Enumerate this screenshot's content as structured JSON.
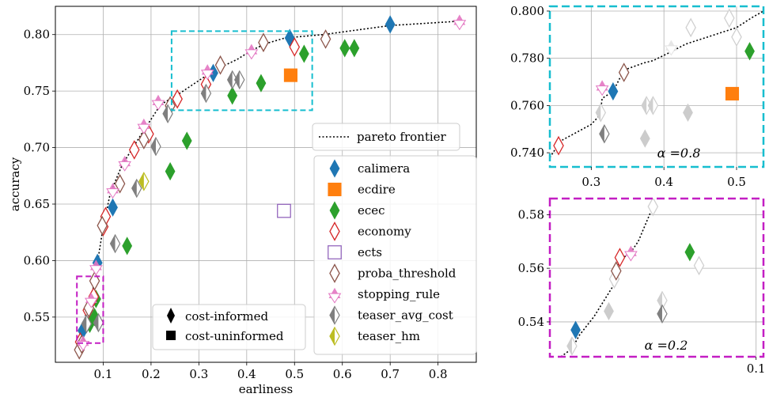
{
  "chart_data": [
    {
      "type": "scatter",
      "panel": "main",
      "xlabel": "earliness",
      "ylabel": "accuracy",
      "xlim": [
        0.0,
        0.88
      ],
      "ylim": [
        0.51,
        0.825
      ],
      "xticks": [
        "0.1",
        "0.2",
        "0.3",
        "0.4",
        "0.5",
        "0.6",
        "0.7",
        "0.8"
      ],
      "xtick_values": [
        0.1,
        0.2,
        0.3,
        0.4,
        0.5,
        0.6,
        0.7,
        0.8
      ],
      "yticks": [
        "0.55",
        "0.60",
        "0.65",
        "0.70",
        "0.75",
        "0.80"
      ],
      "ytick_values": [
        0.55,
        0.6,
        0.65,
        0.7,
        0.75,
        0.8
      ],
      "grid": true,
      "pareto_frontier": [
        [
          0.05,
          0.52
        ],
        [
          0.058,
          0.54
        ],
        [
          0.065,
          0.556
        ],
        [
          0.075,
          0.566
        ],
        [
          0.088,
          0.598
        ],
        [
          0.1,
          0.63
        ],
        [
          0.115,
          0.66
        ],
        [
          0.14,
          0.685
        ],
        [
          0.18,
          0.712
        ],
        [
          0.22,
          0.738
        ],
        [
          0.26,
          0.748
        ],
        [
          0.32,
          0.765
        ],
        [
          0.35,
          0.772
        ],
        [
          0.38,
          0.778
        ],
        [
          0.41,
          0.786
        ],
        [
          0.44,
          0.792
        ],
        [
          0.48,
          0.797
        ],
        [
          0.56,
          0.8
        ],
        [
          0.7,
          0.808
        ],
        [
          0.85,
          0.812
        ]
      ],
      "series": [
        {
          "name": "calimera",
          "color": "#1f77b4",
          "marker": "diamond",
          "filled": true,
          "x": [
            0.057,
            0.067,
            0.088,
            0.12,
            0.33,
            0.49,
            0.7
          ],
          "y": [
            0.538,
            0.545,
            0.598,
            0.647,
            0.766,
            0.797,
            0.809
          ]
        },
        {
          "name": "ecdire",
          "color": "#ff7f0e",
          "marker": "square",
          "filled": true,
          "x": [
            0.492
          ],
          "y": [
            0.764
          ]
        },
        {
          "name": "ecec",
          "color": "#2ca02c",
          "marker": "diamond",
          "filled": true,
          "x": [
            0.072,
            0.082,
            0.085,
            0.15,
            0.24,
            0.275,
            0.37,
            0.43,
            0.52,
            0.605,
            0.625
          ],
          "y": [
            0.544,
            0.55,
            0.566,
            0.613,
            0.679,
            0.706,
            0.746,
            0.757,
            0.783,
            0.788,
            0.788
          ]
        },
        {
          "name": "economy",
          "color": "#d62728",
          "marker": "diamond",
          "filled": false,
          "x": [
            0.052,
            0.068,
            0.08,
            0.1,
            0.105,
            0.165,
            0.195,
            0.255,
            0.315,
            0.5
          ],
          "y": [
            0.528,
            0.556,
            0.568,
            0.63,
            0.639,
            0.698,
            0.712,
            0.743,
            0.756,
            0.789
          ]
        },
        {
          "name": "ects",
          "color": "#9467bd",
          "marker": "square",
          "filled": false,
          "x": [
            0.478
          ],
          "y": [
            0.644
          ]
        },
        {
          "name": "proba_threshold",
          "color": "#8c564b",
          "marker": "diamond",
          "filled": false,
          "x": [
            0.05,
            0.055,
            0.07,
            0.082,
            0.098,
            0.135,
            0.185,
            0.24,
            0.345,
            0.435,
            0.565
          ],
          "y": [
            0.521,
            0.526,
            0.558,
            0.582,
            0.631,
            0.668,
            0.707,
            0.737,
            0.773,
            0.793,
            0.796
          ]
        },
        {
          "name": "stopping_rule",
          "color": "#e377c2",
          "marker": "triangle",
          "filled": true,
          "x": [
            0.058,
            0.075,
            0.085,
            0.12,
            0.145,
            0.185,
            0.215,
            0.318,
            0.41,
            0.845
          ],
          "y": [
            0.528,
            0.566,
            0.595,
            0.663,
            0.687,
            0.72,
            0.741,
            0.768,
            0.786,
            0.812
          ]
        },
        {
          "name": "teaser_avg_cost",
          "color": "#7f7f7f",
          "marker": "diamond",
          "filled": "half",
          "x": [
            0.065,
            0.09,
            0.125,
            0.17,
            0.21,
            0.235,
            0.315,
            0.37,
            0.385
          ],
          "y": [
            0.544,
            0.545,
            0.615,
            0.664,
            0.701,
            0.73,
            0.748,
            0.76,
            0.76
          ]
        },
        {
          "name": "teaser_hm",
          "color": "#bcbd22",
          "marker": "diamond",
          "filled": "half",
          "x": [
            0.185
          ],
          "y": [
            0.67
          ]
        }
      ],
      "legend_position": "right",
      "legend_extra": [
        {
          "label": "cost-informed",
          "marker": "diamond"
        },
        {
          "label": "cost-uninformed",
          "marker": "square"
        }
      ],
      "legend_extra_position": "bottom-center",
      "frontier_legend_label": "pareto frontier",
      "annotation_boxes": [
        {
          "color": "#17becf",
          "x": [
            0.243,
            0.537
          ],
          "y": [
            0.733,
            0.803
          ]
        },
        {
          "color": "#c31ec3",
          "x": [
            0.045,
            0.1
          ],
          "y": [
            0.527,
            0.586
          ]
        }
      ]
    },
    {
      "type": "scatter",
      "panel": "inset-top",
      "label": "α =0.8",
      "border_color": "#17becf",
      "xlim": [
        0.243,
        0.537
      ],
      "ylim": [
        0.734,
        0.802
      ],
      "xticks": [
        "0.3",
        "0.4",
        "0.5"
      ],
      "xtick_values": [
        0.3,
        0.4,
        0.5
      ],
      "yticks": [
        "0.740",
        "0.760",
        "0.780",
        "0.800"
      ],
      "ytick_values": [
        0.74,
        0.76,
        0.78,
        0.8
      ],
      "frontier": [
        [
          0.243,
          0.738
        ],
        [
          0.258,
          0.745
        ],
        [
          0.3,
          0.752
        ],
        [
          0.312,
          0.756
        ],
        [
          0.315,
          0.763
        ],
        [
          0.33,
          0.766
        ],
        [
          0.345,
          0.775
        ],
        [
          0.372,
          0.778
        ],
        [
          0.385,
          0.779
        ],
        [
          0.405,
          0.782
        ],
        [
          0.43,
          0.786
        ],
        [
          0.47,
          0.79
        ],
        [
          0.5,
          0.793
        ],
        [
          0.52,
          0.797
        ],
        [
          0.537,
          0.8
        ]
      ],
      "points": [
        {
          "series": "economy",
          "x": 0.255,
          "y": 0.743,
          "color": "#d62728",
          "marker": "diamond",
          "filled": false
        },
        {
          "series": "teaser_avg_cost",
          "x": 0.318,
          "y": 0.748,
          "color": "#7f7f7f",
          "marker": "diamond",
          "filled": "half"
        },
        {
          "series": "teaser_avg_cost",
          "x": 0.313,
          "y": 0.757,
          "color": "#cfcfcf",
          "marker": "diamond",
          "filled": "half"
        },
        {
          "series": "stopping_rule",
          "x": 0.315,
          "y": 0.768,
          "color": "#e377c2",
          "marker": "triangle",
          "filled": true
        },
        {
          "series": "calimera",
          "x": 0.33,
          "y": 0.766,
          "color": "#1f77b4",
          "marker": "diamond",
          "filled": true
        },
        {
          "series": "proba_threshold",
          "x": 0.345,
          "y": 0.774,
          "color": "#8c564b",
          "marker": "diamond",
          "filled": false
        },
        {
          "series": "ecec",
          "x": 0.374,
          "y": 0.746,
          "color": "#cccccc",
          "marker": "diamond",
          "filled": true
        },
        {
          "series": "teaser_avg_cost",
          "x": 0.376,
          "y": 0.76,
          "color": "#cfcfcf",
          "marker": "diamond",
          "filled": "half"
        },
        {
          "series": "teaser_avg_cost",
          "x": 0.385,
          "y": 0.76,
          "color": "#cfcfcf",
          "marker": "diamond",
          "filled": "half"
        },
        {
          "series": "ecec",
          "x": 0.433,
          "y": 0.757,
          "color": "#cccccc",
          "marker": "diamond",
          "filled": true
        },
        {
          "series": "stopping_rule",
          "x": 0.41,
          "y": 0.785,
          "color": "#e3e3e3",
          "marker": "triangle",
          "filled": true
        },
        {
          "series": "proba_threshold",
          "x": 0.437,
          "y": 0.793,
          "color": "#d0d0d0",
          "marker": "diamond",
          "filled": false
        },
        {
          "series": "ecdire",
          "x": 0.494,
          "y": 0.765,
          "color": "#ff7f0e",
          "marker": "square",
          "filled": true
        },
        {
          "series": "ecec",
          "x": 0.518,
          "y": 0.783,
          "color": "#2ca02c",
          "marker": "diamond",
          "filled": true
        },
        {
          "series": "economy",
          "x": 0.5,
          "y": 0.789,
          "color": "#d0d0d0",
          "marker": "diamond",
          "filled": false
        },
        {
          "series": "proba_threshold",
          "x": 0.49,
          "y": 0.797,
          "color": "#d0d0d0",
          "marker": "diamond",
          "filled": false
        }
      ]
    },
    {
      "type": "scatter",
      "panel": "inset-bottom",
      "label": "α =0.2",
      "border_color": "#c31ec3",
      "xlim": [
        0.044,
        0.102
      ],
      "ylim": [
        0.527,
        0.586
      ],
      "xticks": [
        "0.1"
      ],
      "xtick_values": [
        0.1
      ],
      "yticks": [
        "0.54",
        "0.56",
        "0.58"
      ],
      "ytick_values": [
        0.54,
        0.56,
        0.58
      ],
      "frontier": [
        [
          0.047,
          0.527
        ],
        [
          0.05,
          0.53
        ],
        [
          0.052,
          0.535
        ],
        [
          0.056,
          0.542
        ],
        [
          0.061,
          0.553
        ],
        [
          0.063,
          0.563
        ],
        [
          0.066,
          0.566
        ],
        [
          0.068,
          0.57
        ],
        [
          0.072,
          0.583
        ]
      ],
      "points": [
        {
          "series": "teaser_avg_cost",
          "x": 0.05,
          "y": 0.531,
          "color": "#cfcfcf",
          "marker": "diamond",
          "filled": "half"
        },
        {
          "series": "calimera",
          "x": 0.051,
          "y": 0.537,
          "color": "#1f77b4",
          "marker": "diamond",
          "filled": true
        },
        {
          "series": "economy",
          "x": 0.0615,
          "y": 0.556,
          "color": "#d0d0d0",
          "marker": "diamond",
          "filled": false
        },
        {
          "series": "proba_threshold",
          "x": 0.062,
          "y": 0.559,
          "color": "#8c564b",
          "marker": "diamond",
          "filled": false
        },
        {
          "series": "economy",
          "x": 0.063,
          "y": 0.564,
          "color": "#d62728",
          "marker": "diamond",
          "filled": false
        },
        {
          "series": "ecec",
          "x": 0.06,
          "y": 0.544,
          "color": "#cccccc",
          "marker": "diamond",
          "filled": true
        },
        {
          "series": "stopping_rule",
          "x": 0.066,
          "y": 0.566,
          "color": "#e377c2",
          "marker": "triangle",
          "filled": true
        },
        {
          "series": "teaser_avg_cost",
          "x": 0.0745,
          "y": 0.548,
          "color": "#cfcfcf",
          "marker": "diamond",
          "filled": "half"
        },
        {
          "series": "teaser_avg_cost",
          "x": 0.0745,
          "y": 0.543,
          "color": "#7f7f7f",
          "marker": "diamond",
          "filled": "half"
        },
        {
          "series": "ecec",
          "x": 0.082,
          "y": 0.566,
          "color": "#2ca02c",
          "marker": "diamond",
          "filled": true
        },
        {
          "series": "proba_threshold",
          "x": 0.0845,
          "y": 0.561,
          "color": "#d0d0d0",
          "marker": "diamond",
          "filled": false
        },
        {
          "series": "proba_threshold",
          "x": 0.072,
          "y": 0.583,
          "color": "#d0d0d0",
          "marker": "diamond",
          "filled": false
        }
      ]
    }
  ]
}
